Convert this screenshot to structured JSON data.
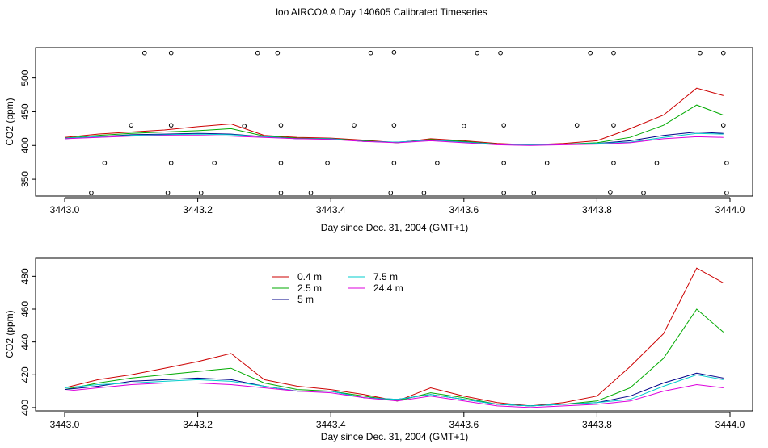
{
  "figure": {
    "title": "loo AIRCOA A  Day 140605  Calibrated Timeseries"
  },
  "colors": {
    "0.4 m": "#cc0000",
    "2.5 m": "#00aa00",
    "5 m": "#000088",
    "7.5 m": "#00cccc",
    "24.4 m": "#dd00dd"
  },
  "chart_data": [
    {
      "type": "line",
      "xlabel": "Day since Dec. 31, 2004 (GMT+1)",
      "ylabel": "CO2 (ppm)",
      "xlim": [
        3443.0,
        3444.0
      ],
      "ylim": [
        325,
        545
      ],
      "xticks": [
        "3443.0",
        "3443.2",
        "3443.4",
        "3443.6",
        "3443.8",
        "3444.0"
      ],
      "yticks": [
        "350",
        "400",
        "450",
        "500"
      ],
      "grid": false,
      "x": [
        3443.0,
        3443.05,
        3443.1,
        3443.15,
        3443.2,
        3443.25,
        3443.3,
        3443.35,
        3443.4,
        3443.45,
        3443.5,
        3443.55,
        3443.6,
        3443.65,
        3443.7,
        3443.75,
        3443.8,
        3443.85,
        3443.9,
        3443.95,
        3443.99
      ],
      "series": [
        {
          "name": "0.4 m",
          "values": [
            412,
            417,
            420,
            423,
            428,
            432,
            415,
            412,
            411,
            408,
            404,
            410,
            407,
            403,
            401,
            403,
            407,
            425,
            445,
            485,
            474
          ]
        },
        {
          "name": "2.5 m",
          "values": [
            411,
            415,
            418,
            420,
            422,
            425,
            414,
            411,
            410,
            407,
            404,
            409,
            406,
            402,
            401,
            402,
            404,
            412,
            430,
            460,
            445
          ]
        },
        {
          "name": "5 m",
          "values": [
            410,
            413,
            416,
            417,
            418,
            417,
            413,
            410,
            410,
            406,
            405,
            408,
            405,
            402,
            401,
            402,
            403,
            407,
            415,
            420,
            418
          ]
        },
        {
          "name": "7.5 m",
          "values": [
            411,
            413,
            415,
            416,
            417,
            416,
            413,
            410,
            410,
            406,
            405,
            408,
            405,
            402,
            401,
            402,
            403,
            405,
            412,
            418,
            417
          ]
        },
        {
          "name": "24.4 m",
          "values": [
            410,
            412,
            414,
            415,
            415,
            414,
            412,
            410,
            409,
            406,
            404,
            407,
            404,
            401,
            400,
            401,
            402,
            404,
            410,
            413,
            412
          ]
        }
      ],
      "markers": [
        {
          "x": 3443.12,
          "y": 537
        },
        {
          "x": 3443.16,
          "y": 537
        },
        {
          "x": 3443.29,
          "y": 537
        },
        {
          "x": 3443.32,
          "y": 537
        },
        {
          "x": 3443.46,
          "y": 537
        },
        {
          "x": 3443.495,
          "y": 538
        },
        {
          "x": 3443.62,
          "y": 537
        },
        {
          "x": 3443.655,
          "y": 537
        },
        {
          "x": 3443.79,
          "y": 537
        },
        {
          "x": 3443.825,
          "y": 537
        },
        {
          "x": 3443.955,
          "y": 537
        },
        {
          "x": 3443.99,
          "y": 537
        },
        {
          "x": 3443.1,
          "y": 430
        },
        {
          "x": 3443.16,
          "y": 430
        },
        {
          "x": 3443.27,
          "y": 429
        },
        {
          "x": 3443.325,
          "y": 430
        },
        {
          "x": 3443.435,
          "y": 430
        },
        {
          "x": 3443.495,
          "y": 430
        },
        {
          "x": 3443.6,
          "y": 429
        },
        {
          "x": 3443.66,
          "y": 430
        },
        {
          "x": 3443.77,
          "y": 430
        },
        {
          "x": 3443.825,
          "y": 430
        },
        {
          "x": 3443.99,
          "y": 430
        },
        {
          "x": 3443.06,
          "y": 374
        },
        {
          "x": 3443.16,
          "y": 374
        },
        {
          "x": 3443.225,
          "y": 374
        },
        {
          "x": 3443.325,
          "y": 374
        },
        {
          "x": 3443.395,
          "y": 374
        },
        {
          "x": 3443.495,
          "y": 374
        },
        {
          "x": 3443.56,
          "y": 374
        },
        {
          "x": 3443.66,
          "y": 374
        },
        {
          "x": 3443.725,
          "y": 374
        },
        {
          "x": 3443.825,
          "y": 374
        },
        {
          "x": 3443.89,
          "y": 374
        },
        {
          "x": 3443.995,
          "y": 374
        },
        {
          "x": 3443.04,
          "y": 330
        },
        {
          "x": 3443.155,
          "y": 330
        },
        {
          "x": 3443.205,
          "y": 330
        },
        {
          "x": 3443.325,
          "y": 330
        },
        {
          "x": 3443.37,
          "y": 330
        },
        {
          "x": 3443.49,
          "y": 330
        },
        {
          "x": 3443.54,
          "y": 330
        },
        {
          "x": 3443.66,
          "y": 330
        },
        {
          "x": 3443.705,
          "y": 330
        },
        {
          "x": 3443.82,
          "y": 331
        },
        {
          "x": 3443.87,
          "y": 330
        },
        {
          "x": 3443.995,
          "y": 330
        }
      ]
    },
    {
      "type": "line",
      "xlabel": "Day since Dec. 31, 2004 (GMT+1)",
      "ylabel": "CO2 (ppm)",
      "xlim": [
        3443.0,
        3444.0
      ],
      "ylim": [
        398,
        491
      ],
      "xticks": [
        "3443.0",
        "3443.2",
        "3443.4",
        "3443.6",
        "3443.8",
        "3444.0"
      ],
      "yticks": [
        "400",
        "420",
        "440",
        "460",
        "480"
      ],
      "grid": false,
      "legend": "top-left",
      "x": [
        3443.0,
        3443.05,
        3443.1,
        3443.15,
        3443.2,
        3443.25,
        3443.3,
        3443.35,
        3443.4,
        3443.45,
        3443.5,
        3443.55,
        3443.6,
        3443.65,
        3443.7,
        3443.75,
        3443.8,
        3443.85,
        3443.9,
        3443.95,
        3443.99
      ],
      "series": [
        {
          "name": "0.4 m",
          "values": [
            412,
            417,
            420,
            424,
            428,
            433,
            417,
            413,
            411,
            408,
            404,
            412,
            407,
            403,
            401,
            403,
            407,
            425,
            445,
            485,
            476
          ]
        },
        {
          "name": "2.5 m",
          "values": [
            411,
            415,
            418,
            420,
            422,
            424,
            415,
            411,
            410,
            407,
            404,
            409,
            406,
            402,
            401,
            402,
            404,
            412,
            430,
            460,
            446
          ]
        },
        {
          "name": "5 m",
          "values": [
            411,
            413,
            416,
            417,
            418,
            417,
            413,
            410,
            410,
            406,
            405,
            408,
            405,
            402,
            401,
            402,
            403,
            407,
            415,
            421,
            418
          ]
        },
        {
          "name": "7.5 m",
          "values": [
            412,
            414,
            415,
            416,
            417,
            416,
            413,
            410,
            410,
            406,
            405,
            408,
            405,
            402,
            401,
            402,
            403,
            405,
            413,
            420,
            417
          ]
        },
        {
          "name": "24.4 m",
          "values": [
            410,
            412,
            414,
            415,
            415,
            414,
            412,
            410,
            409,
            406,
            404,
            407,
            404,
            401,
            400,
            401,
            402,
            404,
            410,
            414,
            412
          ]
        }
      ]
    }
  ]
}
